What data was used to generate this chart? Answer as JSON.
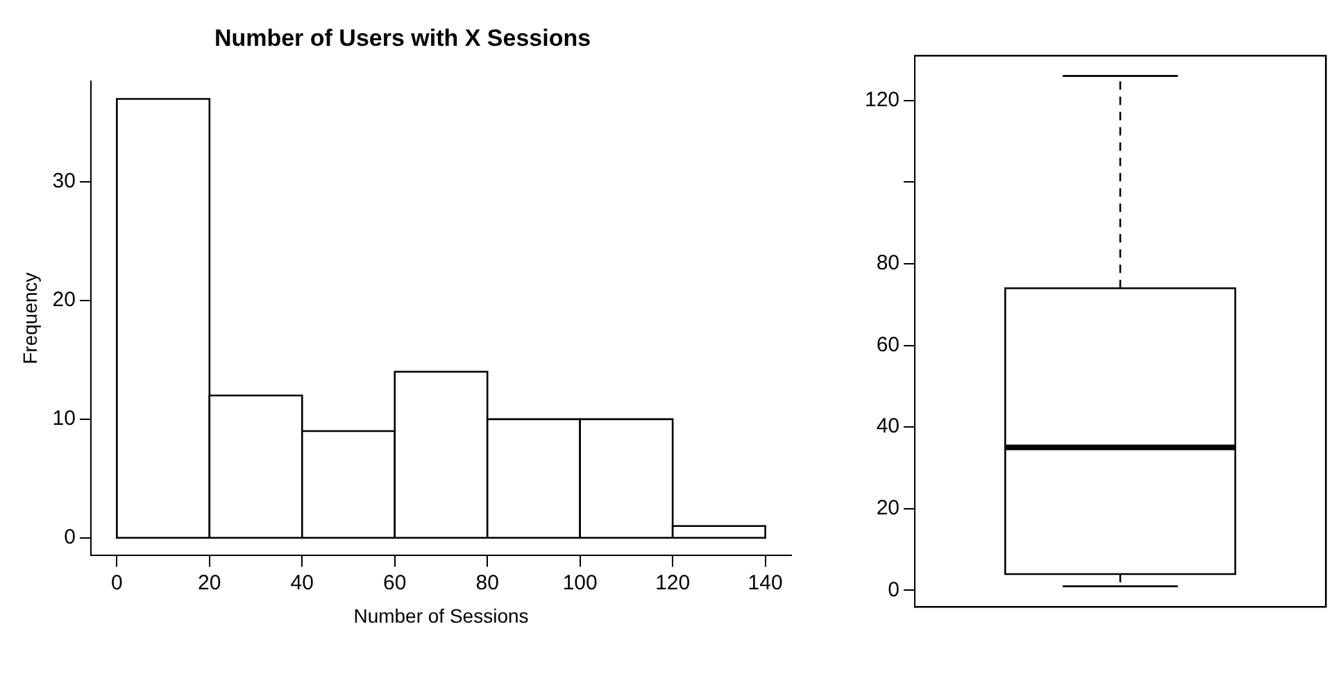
{
  "chart_data": [
    {
      "type": "histogram",
      "title": "Number of Users with X Sessions",
      "xlabel": "Number of Sessions",
      "ylabel": "Frequency",
      "bins": [
        0,
        20,
        40,
        60,
        80,
        100,
        120,
        140
      ],
      "values": [
        37,
        12,
        9,
        14,
        10,
        10,
        1
      ],
      "color": "#ffffff",
      "xlim": [
        -5.6,
        145.6
      ],
      "xticks": [
        0,
        20,
        40,
        60,
        80,
        100,
        120,
        140
      ],
      "ylim": [
        -1.5,
        38.5
      ],
      "yticks": [
        0,
        10,
        20,
        30
      ],
      "grid": false,
      "legend": false
    },
    {
      "type": "box",
      "categories": [
        null
      ],
      "boxes": [
        {
          "low": 1,
          "q1": 4,
          "median": 35,
          "q3": 74,
          "high": 126
        }
      ],
      "color": "#ffffff",
      "ylim": [
        -4,
        131
      ],
      "yticks": [
        0,
        20,
        40,
        60,
        80,
        {
          "value": 100,
          "label": null
        },
        120
      ],
      "grid": false,
      "legend": false
    }
  ]
}
